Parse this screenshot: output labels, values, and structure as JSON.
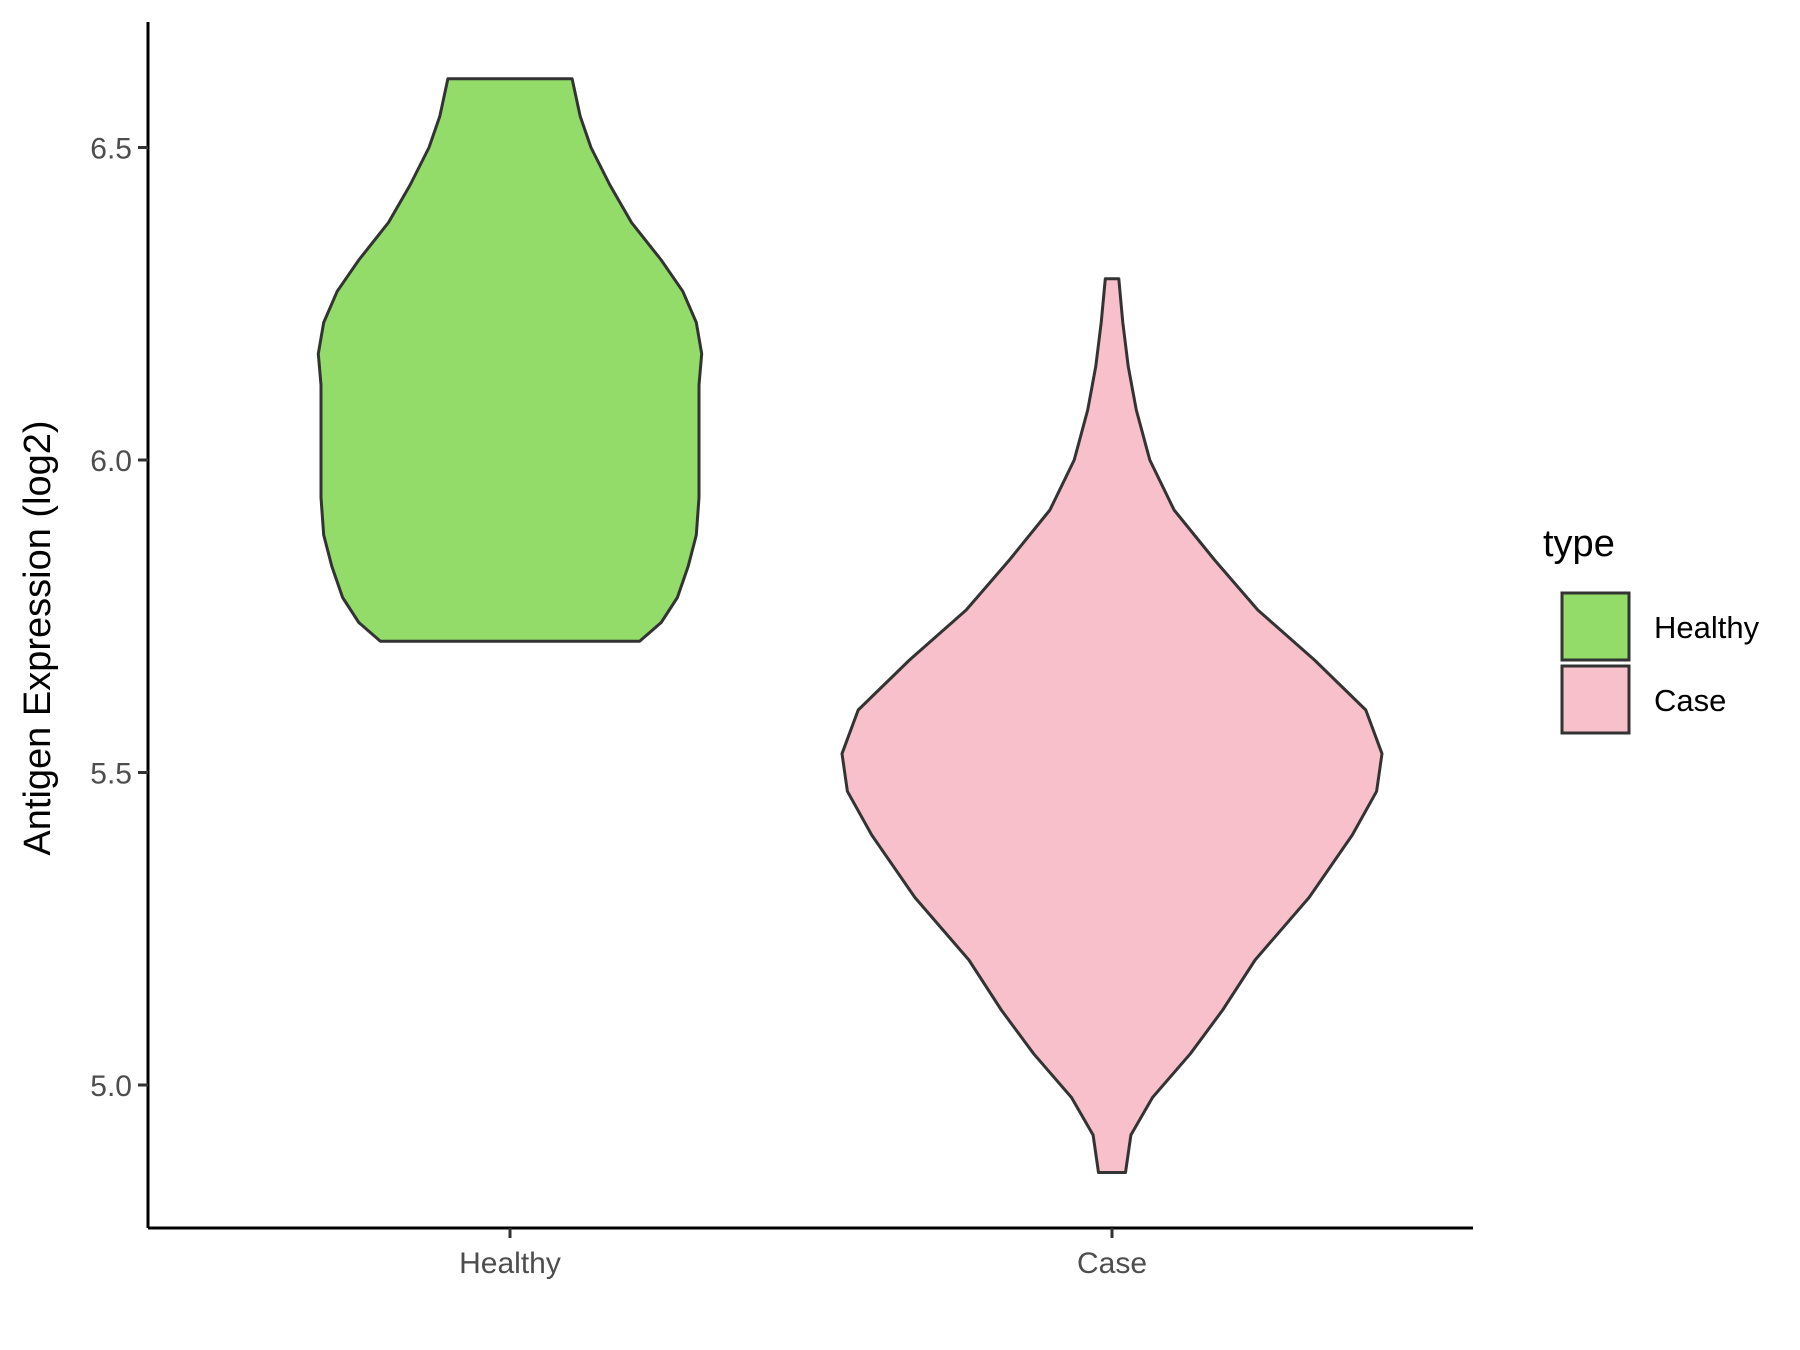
{
  "chart_data": {
    "type": "violin",
    "title": "",
    "xlabel": "",
    "ylabel": "Antigen Expression (log2)",
    "ylim": [
      4.8,
      6.72
    ],
    "y_ticks": [
      "5.0",
      "5.5",
      "6.0",
      "6.5"
    ],
    "grid": false,
    "legend_position": "right",
    "legend_title": "type",
    "categories": [
      "Healthy",
      "Case"
    ],
    "series": [
      {
        "name": "Healthy",
        "color": "#93dc6a",
        "min": 5.71,
        "max": 6.61,
        "density_profile": [
          [
            5.71,
            0.48
          ],
          [
            5.74,
            0.56
          ],
          [
            5.78,
            0.62
          ],
          [
            5.83,
            0.66
          ],
          [
            5.88,
            0.69
          ],
          [
            5.94,
            0.7
          ],
          [
            6.0,
            0.7
          ],
          [
            6.06,
            0.7
          ],
          [
            6.12,
            0.7
          ],
          [
            6.17,
            0.71
          ],
          [
            6.22,
            0.69
          ],
          [
            6.27,
            0.64
          ],
          [
            6.32,
            0.56
          ],
          [
            6.38,
            0.45
          ],
          [
            6.44,
            0.37
          ],
          [
            6.5,
            0.3
          ],
          [
            6.55,
            0.26
          ],
          [
            6.61,
            0.23
          ]
        ]
      },
      {
        "name": "Case",
        "color": "#f7c0cb",
        "min": 4.86,
        "max": 6.29,
        "density_profile": [
          [
            4.86,
            0.05
          ],
          [
            4.92,
            0.07
          ],
          [
            4.98,
            0.15
          ],
          [
            5.05,
            0.29
          ],
          [
            5.12,
            0.41
          ],
          [
            5.2,
            0.53
          ],
          [
            5.3,
            0.73
          ],
          [
            5.4,
            0.89
          ],
          [
            5.47,
            0.98
          ],
          [
            5.53,
            1.0
          ],
          [
            5.6,
            0.94
          ],
          [
            5.68,
            0.75
          ],
          [
            5.76,
            0.54
          ],
          [
            5.84,
            0.38
          ],
          [
            5.92,
            0.23
          ],
          [
            6.0,
            0.14
          ],
          [
            6.08,
            0.09
          ],
          [
            6.15,
            0.06
          ],
          [
            6.22,
            0.04
          ],
          [
            6.29,
            0.025
          ]
        ]
      }
    ]
  }
}
